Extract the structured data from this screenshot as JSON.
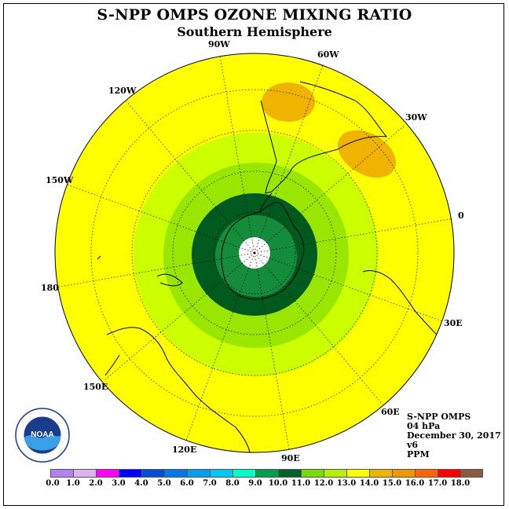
{
  "title": "S-NPP OMPS OZONE MIXING RATIO",
  "subtitle": "Southern Hemisphere",
  "longitude_labels": [
    "90W",
    "60W",
    "30W",
    "0",
    "30E",
    "60E",
    "90E",
    "120E",
    "150E",
    "180",
    "150W",
    "120W"
  ],
  "info": {
    "instrument": "S-NPP OMPS",
    "level": "04 hPa",
    "date": "December 30, 2017",
    "version": "v6",
    "units": "PPM"
  },
  "logo": {
    "text": "NOAA",
    "icon": "noaa-logo-icon"
  },
  "colors": {
    "ocean_background": "#ffff00",
    "ring_12": "#ccff00",
    "ring_11": "#99e600",
    "ring_10": "#005a1e",
    "ring_9": "#148c3c",
    "high_13": "#f0b400"
  },
  "color_scale": {
    "labels": [
      "0.0",
      "1.0",
      "2.0",
      "3.0",
      "4.0",
      "5.0",
      "6.0",
      "7.0",
      "8.0",
      "9.0",
      "10.0",
      "11.0",
      "12.0",
      "13.0",
      "14.0",
      "15.0",
      "16.0",
      "17.0",
      "18.0"
    ],
    "colors": [
      "#b482f0",
      "#dcb4f0",
      "#ff00ff",
      "#0000ff",
      "#0050d7",
      "#0078e6",
      "#00a0f0",
      "#00c8f0",
      "#00ffc8",
      "#00a050",
      "#006428",
      "#78dc00",
      "#b4f000",
      "#ffff00",
      "#f0b400",
      "#f09600",
      "#ff6400",
      "#ff0000",
      "#8c5a3c"
    ]
  }
}
